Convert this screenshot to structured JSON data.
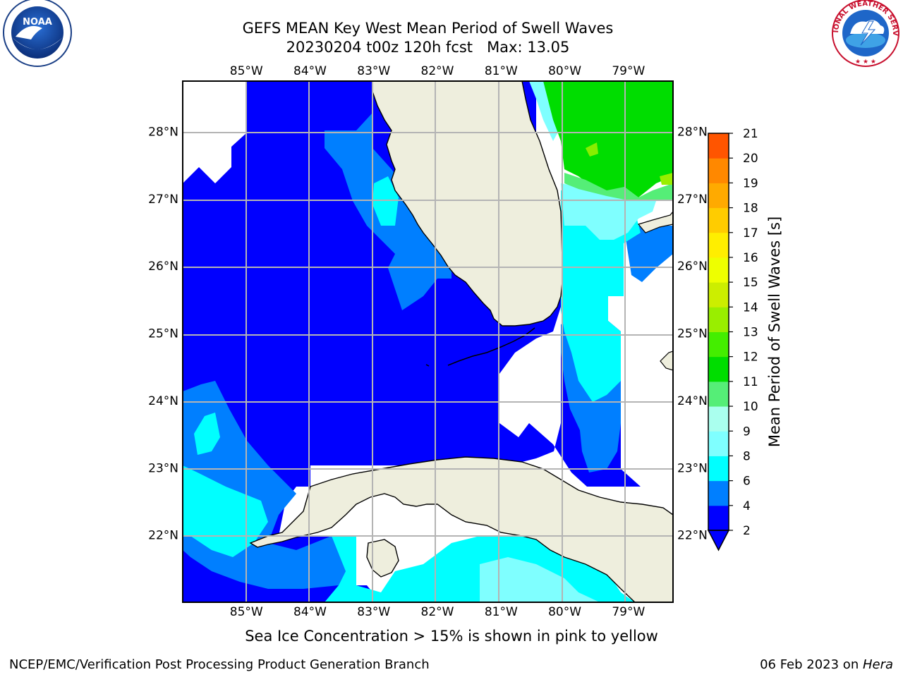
{
  "header": {
    "title_line1": "GEFS MEAN Key West Mean Period of Swell Waves",
    "title_line2": "20230204 t00z 120h fcst   Max: 13.05"
  },
  "logos": {
    "left": "noaa-logo",
    "left_text": "NOAA",
    "right": "nws-logo",
    "right_text": "NATIONAL WEATHER SERVICE"
  },
  "map": {
    "lon_labels": [
      "85°W",
      "84°W",
      "83°W",
      "82°W",
      "81°W",
      "80°W",
      "79°W"
    ],
    "lon_values": [
      -85,
      -84,
      -83,
      -82,
      -81,
      -80,
      -79
    ],
    "lat_labels": [
      "28°N",
      "27°N",
      "26°N",
      "25°N",
      "24°N",
      "23°N",
      "22°N"
    ],
    "lat_values": [
      28,
      27,
      26,
      25,
      24,
      23,
      22
    ],
    "extent": {
      "lon_min": -86,
      "lon_max": -78.3,
      "lat_min": 21,
      "lat_max": 28.75
    },
    "colors": {
      "land": "#eeeedd",
      "grid": "#b4b4b4",
      "ocean_none": "#ffffff"
    }
  },
  "colorbar": {
    "label": "Mean Period of Swell Waves [s]",
    "ticks": [
      "2",
      "4",
      "6",
      "8",
      "9",
      "10",
      "11",
      "12",
      "13",
      "14",
      "15",
      "16",
      "17",
      "18",
      "19",
      "20",
      "21"
    ],
    "tick_values": [
      2,
      4,
      6,
      8,
      9,
      10,
      11,
      12,
      13,
      14,
      15,
      16,
      17,
      18,
      19,
      20,
      21
    ],
    "colors": [
      "#0000ff",
      "#007fff",
      "#00ffff",
      "#7fffff",
      "#aaffee",
      "#55ee77",
      "#00dd00",
      "#44ee00",
      "#99ee00",
      "#ccee00",
      "#eeff00",
      "#ffee00",
      "#ffcc00",
      "#ffaa00",
      "#ff8800",
      "#ff5500",
      "#ff2200",
      "#ff0000"
    ],
    "extend_lower_color": "#0000ff"
  },
  "chart_data": {
    "type": "heatmap",
    "title": "GEFS MEAN Key West Mean Period of Swell Waves",
    "subtitle": "20230204 t00z 120h fcst   Max: 13.05",
    "variable": "Mean Period of Swell Waves [s]",
    "max": 13.05,
    "xlabel": "",
    "ylabel": "",
    "x_ticks": [
      "85°W",
      "84°W",
      "83°W",
      "82°W",
      "81°W",
      "80°W",
      "79°W"
    ],
    "y_ticks": [
      "28°N",
      "27°N",
      "26°N",
      "25°N",
      "24°N",
      "23°N",
      "22°N"
    ],
    "colorbar_range": [
      2,
      21
    ],
    "grid": true
  },
  "footer": {
    "note": "Sea Ice Concentration > 15% is shown in pink to yellow",
    "left": "NCEP/EMC/Verification Post Processing Product Generation Branch",
    "right_prefix": "06 Feb 2023 on ",
    "right_host": "Hera"
  }
}
